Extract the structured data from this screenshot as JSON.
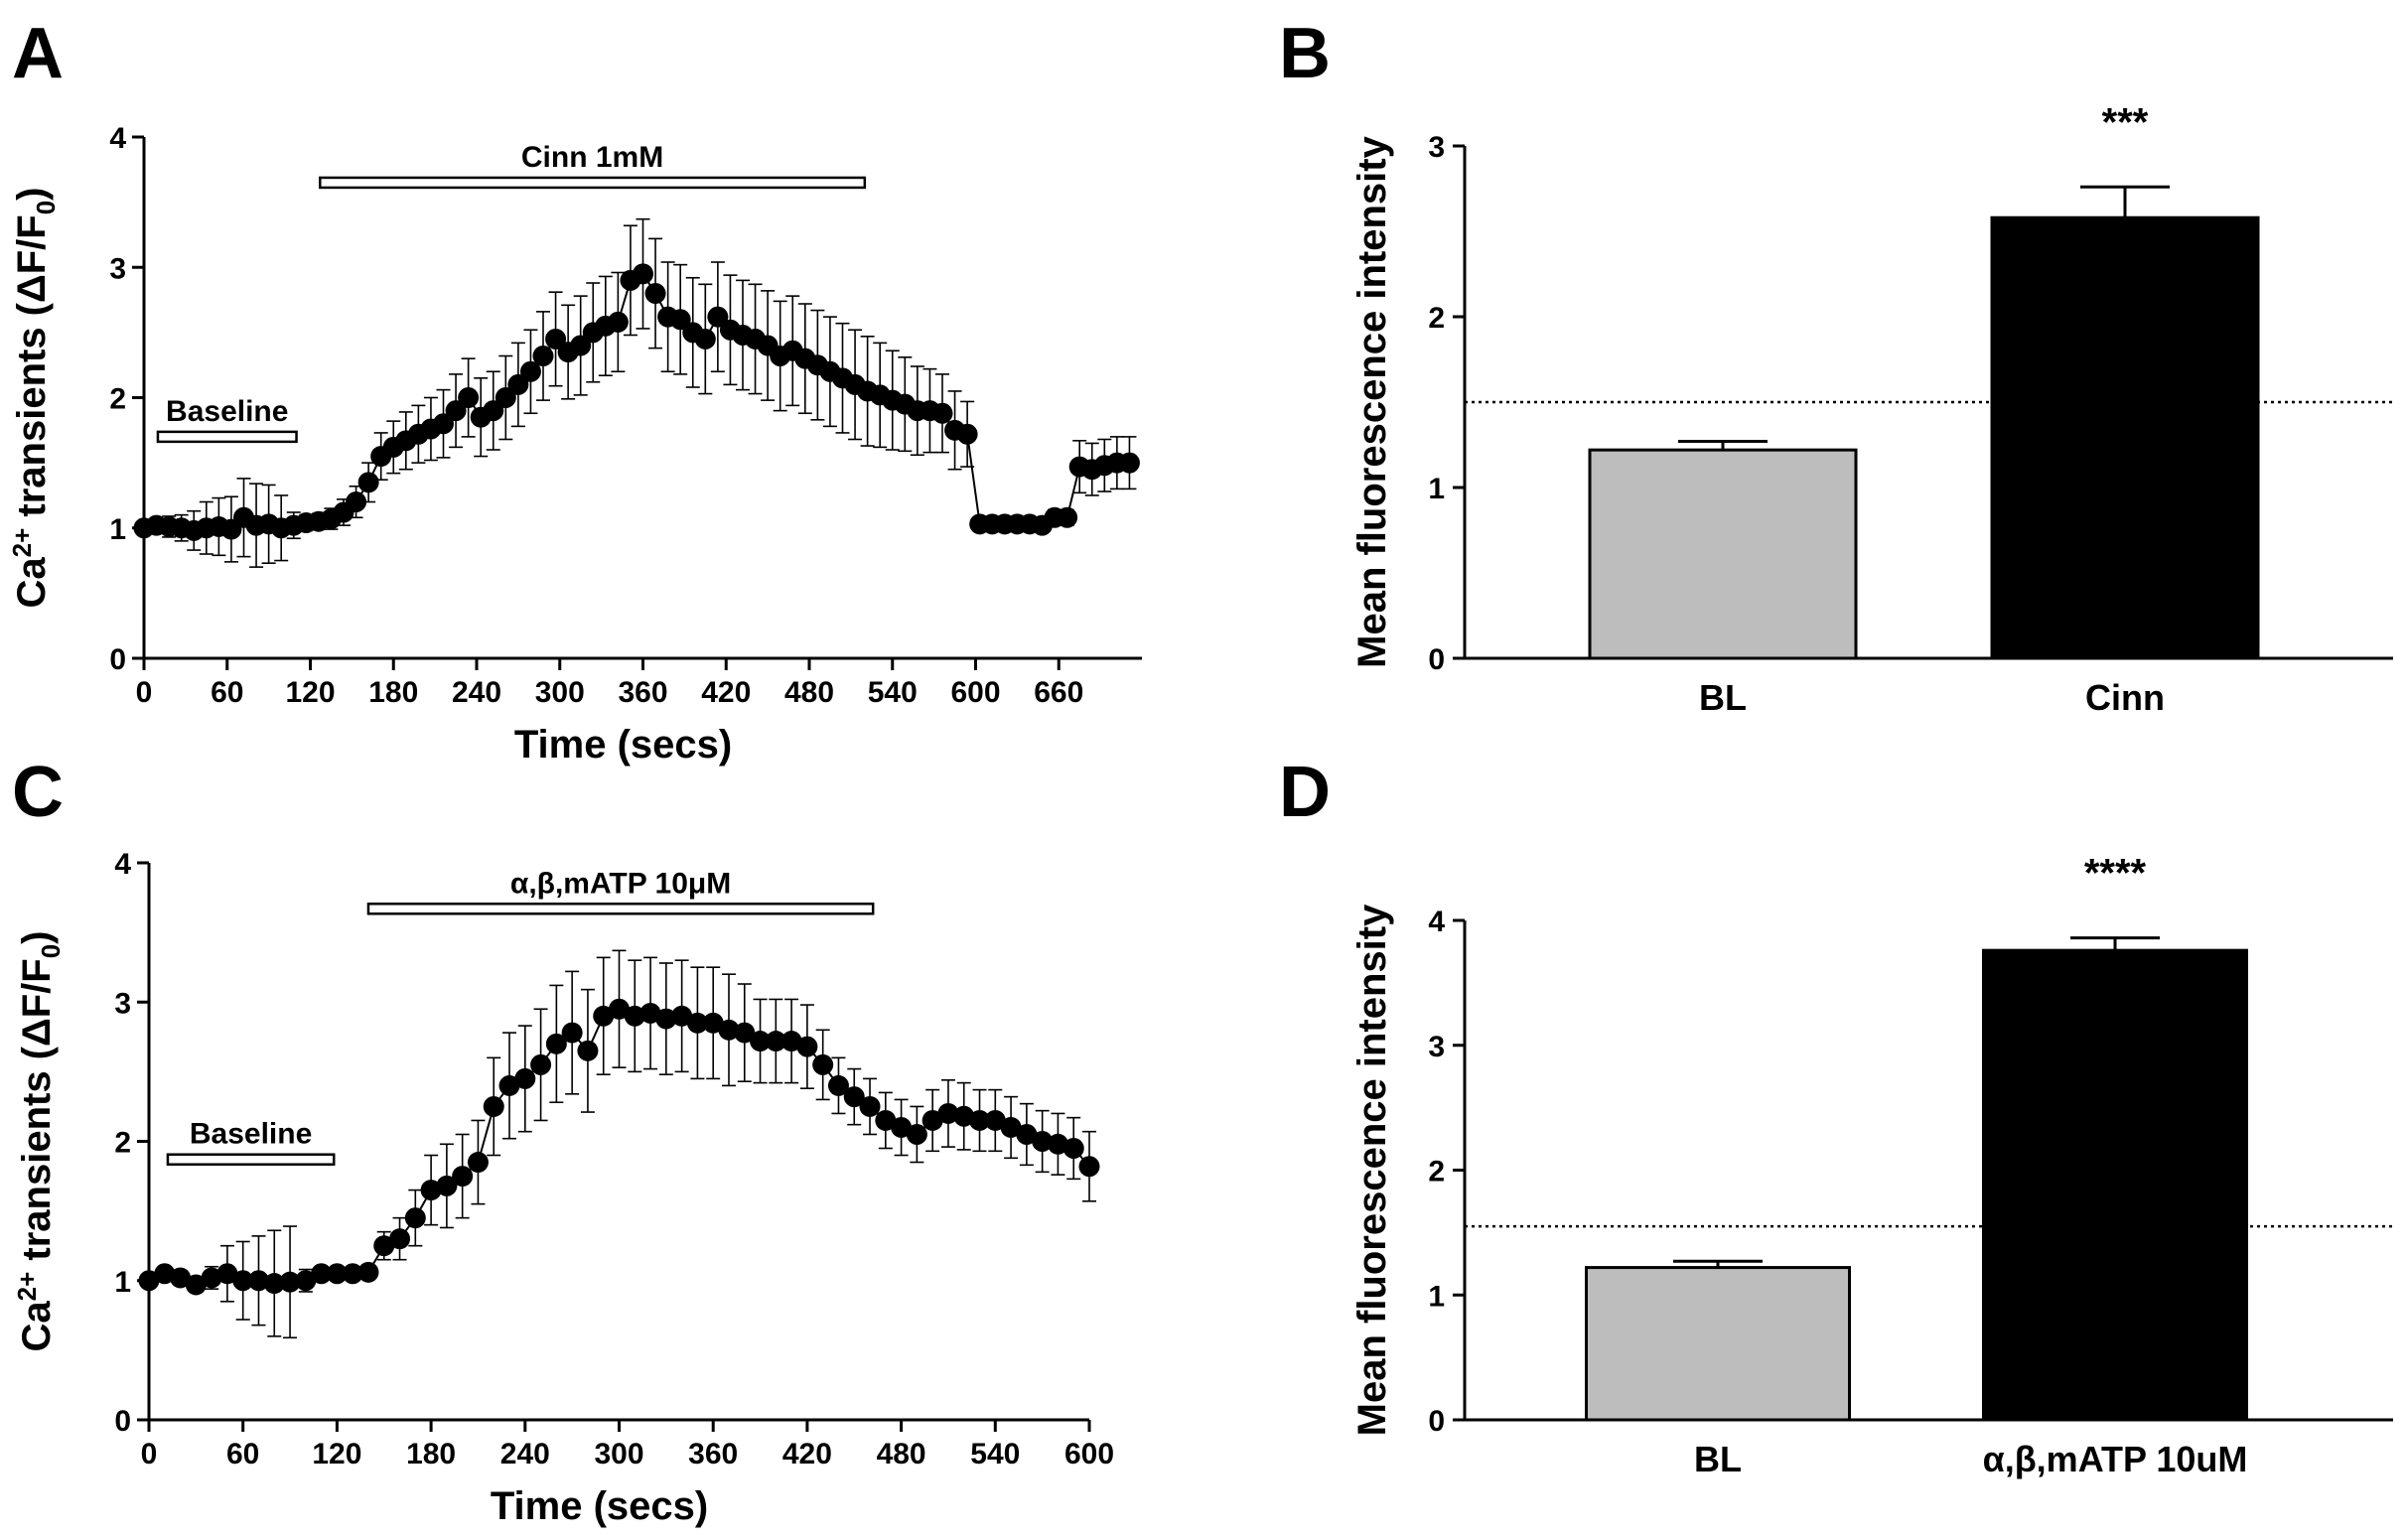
{
  "chart_data": [
    {
      "panel": "A",
      "type": "scatter",
      "title": "",
      "xlabel": "Time (secs)",
      "ylabel": "Ca2+ transients (ΔF/F0)",
      "ylabel_parts": {
        "base": "Ca",
        "sup": "2+",
        "mid": " transients (ΔF/F",
        "sub": "0",
        "end": ")"
      },
      "xlim": [
        0,
        720
      ],
      "ylim": [
        0,
        4
      ],
      "xticks": [
        0,
        60,
        120,
        180,
        240,
        300,
        360,
        420,
        480,
        540,
        600,
        660
      ],
      "yticks": [
        0,
        1,
        2,
        3,
        4
      ],
      "annotations": [
        {
          "label": "Baseline",
          "x_start": 10,
          "x_end": 110,
          "y": 1.7
        },
        {
          "label": "Cinn 1mM",
          "x_start": 127,
          "x_end": 520,
          "y": 3.65
        }
      ],
      "series": [
        {
          "name": "Ca2+ transients",
          "x": [
            0,
            9,
            18,
            27,
            36,
            45,
            54,
            63,
            72,
            81,
            90,
            99,
            108,
            117,
            126,
            135,
            144,
            153,
            162,
            171,
            180,
            189,
            198,
            207,
            216,
            225,
            234,
            243,
            252,
            261,
            270,
            279,
            288,
            297,
            306,
            315,
            324,
            333,
            342,
            351,
            360,
            369,
            378,
            387,
            396,
            405,
            414,
            423,
            432,
            441,
            450,
            459,
            468,
            477,
            486,
            495,
            504,
            513,
            522,
            531,
            540,
            549,
            558,
            567,
            576,
            585,
            594,
            603,
            612,
            621,
            630,
            639,
            648,
            657,
            666,
            675,
            684,
            693,
            702,
            711
          ],
          "y": [
            1.0,
            1.02,
            1.01,
            1.0,
            0.98,
            1.0,
            1.01,
            0.99,
            1.08,
            1.02,
            1.03,
            1.0,
            1.02,
            1.04,
            1.05,
            1.07,
            1.12,
            1.2,
            1.35,
            1.55,
            1.62,
            1.67,
            1.72,
            1.76,
            1.8,
            1.9,
            2.0,
            1.85,
            1.9,
            2.0,
            2.1,
            2.2,
            2.32,
            2.45,
            2.35,
            2.4,
            2.5,
            2.55,
            2.58,
            2.9,
            2.95,
            2.8,
            2.62,
            2.6,
            2.5,
            2.45,
            2.62,
            2.52,
            2.48,
            2.45,
            2.4,
            2.32,
            2.36,
            2.3,
            2.25,
            2.2,
            2.15,
            2.1,
            2.05,
            2.02,
            1.98,
            1.95,
            1.9,
            1.9,
            1.88,
            1.75,
            1.72,
            1.03,
            1.03,
            1.03,
            1.03,
            1.03,
            1.02,
            1.08,
            1.08,
            1.47,
            1.45,
            1.48,
            1.5,
            1.5
          ],
          "err": [
            0.05,
            0.05,
            0.08,
            0.1,
            0.15,
            0.2,
            0.22,
            0.25,
            0.3,
            0.32,
            0.3,
            0.25,
            0.1,
            0.06,
            0.06,
            0.08,
            0.1,
            0.12,
            0.15,
            0.18,
            0.2,
            0.22,
            0.22,
            0.24,
            0.26,
            0.28,
            0.3,
            0.3,
            0.3,
            0.32,
            0.32,
            0.32,
            0.34,
            0.36,
            0.36,
            0.38,
            0.38,
            0.38,
            0.38,
            0.42,
            0.42,
            0.42,
            0.42,
            0.42,
            0.42,
            0.42,
            0.42,
            0.42,
            0.42,
            0.42,
            0.42,
            0.42,
            0.42,
            0.42,
            0.42,
            0.42,
            0.42,
            0.42,
            0.42,
            0.4,
            0.38,
            0.36,
            0.34,
            0.32,
            0.3,
            0.3,
            0.25,
            0.05,
            0.05,
            0.05,
            0.05,
            0.05,
            0.05,
            0.06,
            0.06,
            0.2,
            0.2,
            0.2,
            0.2,
            0.2
          ]
        }
      ]
    },
    {
      "panel": "B",
      "type": "bar",
      "title": "",
      "xlabel": "",
      "ylabel": "Mean fluorescence intensity",
      "categories": [
        "BL",
        "Cinn"
      ],
      "values": [
        1.22,
        2.58
      ],
      "errors": [
        0.05,
        0.18
      ],
      "colors": [
        "#bdbdbd",
        "#000000"
      ],
      "significance": [
        "",
        "***"
      ],
      "reference_line": 1.5,
      "ylim": [
        0,
        3
      ],
      "yticks": [
        0,
        1,
        2,
        3
      ]
    },
    {
      "panel": "C",
      "type": "scatter",
      "title": "",
      "xlabel": "Time (secs)",
      "ylabel": "Ca2+ transients (ΔF/F0)",
      "ylabel_parts": {
        "base": "Ca",
        "sup": "2+",
        "mid": " transients (ΔF/F",
        "sub": "0",
        "end": ")"
      },
      "xlim": [
        0,
        600
      ],
      "ylim": [
        0,
        4
      ],
      "xticks": [
        0,
        60,
        120,
        180,
        240,
        300,
        360,
        420,
        480,
        540,
        600
      ],
      "yticks": [
        0,
        1,
        2,
        3,
        4
      ],
      "annotations": [
        {
          "label": "Baseline",
          "x_start": 12,
          "x_end": 118,
          "y": 1.87
        },
        {
          "label": "α,β,mATP 10μM",
          "x_start": 140,
          "x_end": 462,
          "y": 3.67
        }
      ],
      "series": [
        {
          "name": "Ca2+ transients",
          "x": [
            0,
            10,
            20,
            30,
            40,
            50,
            60,
            70,
            80,
            90,
            100,
            110,
            120,
            130,
            140,
            150,
            160,
            170,
            180,
            190,
            200,
            210,
            220,
            230,
            240,
            250,
            260,
            270,
            280,
            290,
            300,
            310,
            320,
            330,
            340,
            350,
            360,
            370,
            380,
            390,
            400,
            410,
            420,
            430,
            440,
            450,
            460,
            470,
            480,
            490,
            500,
            510,
            520,
            530,
            540,
            550,
            560,
            570,
            580,
            590,
            600
          ],
          "y": [
            1.0,
            1.05,
            1.02,
            0.97,
            1.02,
            1.05,
            1.0,
            1.0,
            0.98,
            0.99,
            1.0,
            1.05,
            1.05,
            1.05,
            1.06,
            1.25,
            1.3,
            1.45,
            1.65,
            1.68,
            1.75,
            1.85,
            2.25,
            2.4,
            2.45,
            2.55,
            2.7,
            2.78,
            2.65,
            2.9,
            2.95,
            2.9,
            2.92,
            2.88,
            2.9,
            2.85,
            2.85,
            2.8,
            2.78,
            2.72,
            2.72,
            2.72,
            2.68,
            2.55,
            2.4,
            2.32,
            2.25,
            2.15,
            2.1,
            2.05,
            2.15,
            2.2,
            2.18,
            2.15,
            2.15,
            2.1,
            2.05,
            2.0,
            1.98,
            1.95,
            1.82
          ],
          "err": [
            0.05,
            0.05,
            0.05,
            0.05,
            0.08,
            0.2,
            0.28,
            0.32,
            0.38,
            0.4,
            0.08,
            0.05,
            0.05,
            0.05,
            0.05,
            0.1,
            0.15,
            0.2,
            0.25,
            0.3,
            0.3,
            0.3,
            0.35,
            0.38,
            0.38,
            0.4,
            0.42,
            0.44,
            0.44,
            0.42,
            0.42,
            0.4,
            0.4,
            0.4,
            0.4,
            0.4,
            0.4,
            0.4,
            0.35,
            0.3,
            0.3,
            0.3,
            0.3,
            0.25,
            0.2,
            0.2,
            0.2,
            0.2,
            0.2,
            0.2,
            0.22,
            0.24,
            0.24,
            0.22,
            0.22,
            0.22,
            0.22,
            0.22,
            0.22,
            0.22,
            0.25
          ]
        }
      ]
    },
    {
      "panel": "D",
      "type": "bar",
      "title": "",
      "xlabel": "",
      "ylabel": "Mean fluorescence intensity",
      "categories": [
        "BL",
        "α,β,mATP 10uM"
      ],
      "values": [
        1.22,
        3.76
      ],
      "errors": [
        0.05,
        0.1
      ],
      "colors": [
        "#bdbdbd",
        "#000000"
      ],
      "significance": [
        "",
        "****"
      ],
      "reference_line": 1.55,
      "ylim": [
        0,
        4
      ],
      "yticks": [
        0,
        1,
        2,
        3,
        4
      ]
    }
  ],
  "panel_letters": [
    "A",
    "B",
    "C",
    "D"
  ]
}
